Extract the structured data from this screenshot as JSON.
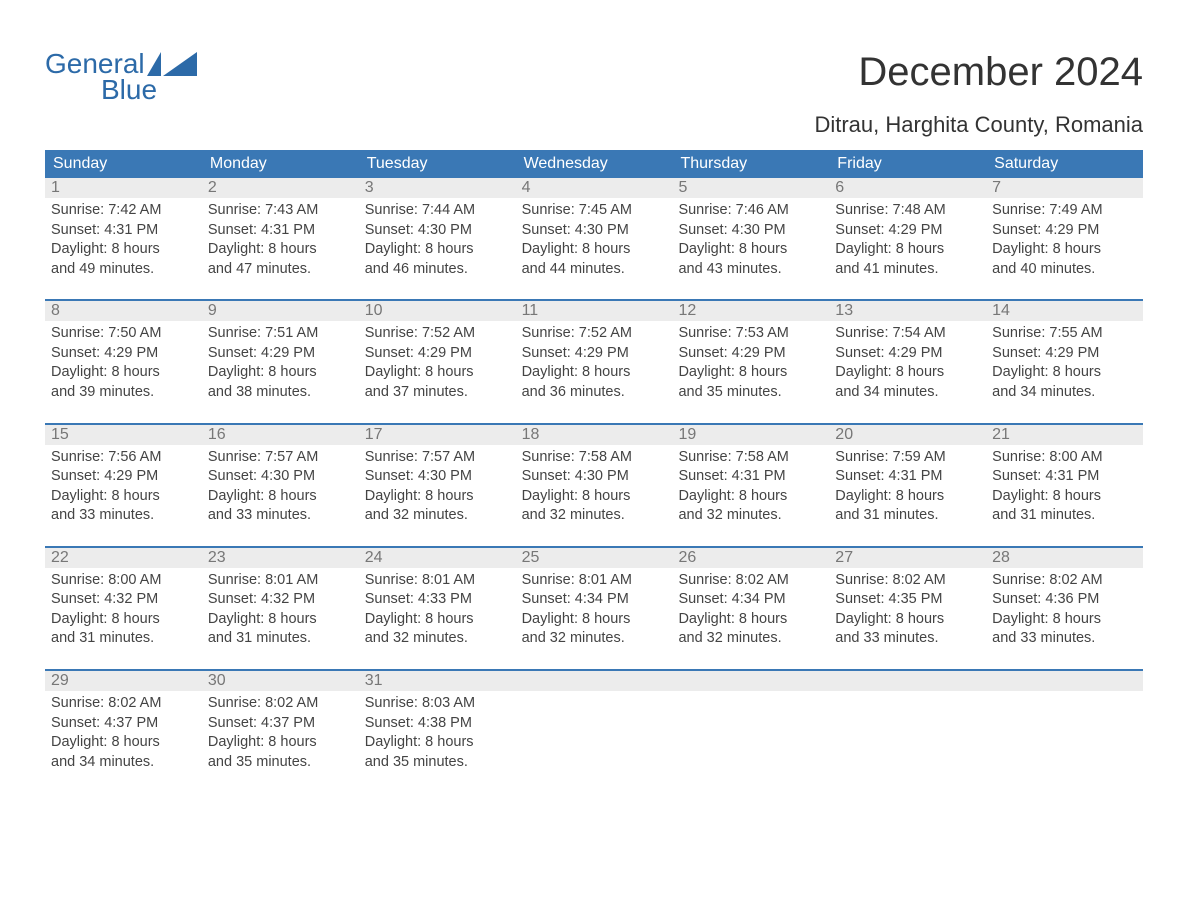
{
  "brand": {
    "line1": "General",
    "line2": "Blue",
    "accent_color": "#2c6aa8"
  },
  "title": "December 2024",
  "subtitle": "Ditrau, Harghita County, Romania",
  "colors": {
    "header_bg": "#3a78b5",
    "header_text": "#ffffff",
    "daynum_bg": "#ececec",
    "daynum_text": "#777777",
    "body_text": "#444444",
    "rule": "#3a78b5",
    "page_bg": "#ffffff"
  },
  "typography": {
    "title_fontsize": 40,
    "subtitle_fontsize": 22,
    "dayhead_fontsize": 16,
    "daynum_fontsize": 16,
    "body_fontsize": 14.5
  },
  "calendar": {
    "type": "table",
    "columns": [
      "Sunday",
      "Monday",
      "Tuesday",
      "Wednesday",
      "Thursday",
      "Friday",
      "Saturday"
    ],
    "weeks": [
      [
        {
          "day": "1",
          "sunrise": "Sunrise: 7:42 AM",
          "sunset": "Sunset: 4:31 PM",
          "d1": "Daylight: 8 hours",
          "d2": "and 49 minutes."
        },
        {
          "day": "2",
          "sunrise": "Sunrise: 7:43 AM",
          "sunset": "Sunset: 4:31 PM",
          "d1": "Daylight: 8 hours",
          "d2": "and 47 minutes."
        },
        {
          "day": "3",
          "sunrise": "Sunrise: 7:44 AM",
          "sunset": "Sunset: 4:30 PM",
          "d1": "Daylight: 8 hours",
          "d2": "and 46 minutes."
        },
        {
          "day": "4",
          "sunrise": "Sunrise: 7:45 AM",
          "sunset": "Sunset: 4:30 PM",
          "d1": "Daylight: 8 hours",
          "d2": "and 44 minutes."
        },
        {
          "day": "5",
          "sunrise": "Sunrise: 7:46 AM",
          "sunset": "Sunset: 4:30 PM",
          "d1": "Daylight: 8 hours",
          "d2": "and 43 minutes."
        },
        {
          "day": "6",
          "sunrise": "Sunrise: 7:48 AM",
          "sunset": "Sunset: 4:29 PM",
          "d1": "Daylight: 8 hours",
          "d2": "and 41 minutes."
        },
        {
          "day": "7",
          "sunrise": "Sunrise: 7:49 AM",
          "sunset": "Sunset: 4:29 PM",
          "d1": "Daylight: 8 hours",
          "d2": "and 40 minutes."
        }
      ],
      [
        {
          "day": "8",
          "sunrise": "Sunrise: 7:50 AM",
          "sunset": "Sunset: 4:29 PM",
          "d1": "Daylight: 8 hours",
          "d2": "and 39 minutes."
        },
        {
          "day": "9",
          "sunrise": "Sunrise: 7:51 AM",
          "sunset": "Sunset: 4:29 PM",
          "d1": "Daylight: 8 hours",
          "d2": "and 38 minutes."
        },
        {
          "day": "10",
          "sunrise": "Sunrise: 7:52 AM",
          "sunset": "Sunset: 4:29 PM",
          "d1": "Daylight: 8 hours",
          "d2": "and 37 minutes."
        },
        {
          "day": "11",
          "sunrise": "Sunrise: 7:52 AM",
          "sunset": "Sunset: 4:29 PM",
          "d1": "Daylight: 8 hours",
          "d2": "and 36 minutes."
        },
        {
          "day": "12",
          "sunrise": "Sunrise: 7:53 AM",
          "sunset": "Sunset: 4:29 PM",
          "d1": "Daylight: 8 hours",
          "d2": "and 35 minutes."
        },
        {
          "day": "13",
          "sunrise": "Sunrise: 7:54 AM",
          "sunset": "Sunset: 4:29 PM",
          "d1": "Daylight: 8 hours",
          "d2": "and 34 minutes."
        },
        {
          "day": "14",
          "sunrise": "Sunrise: 7:55 AM",
          "sunset": "Sunset: 4:29 PM",
          "d1": "Daylight: 8 hours",
          "d2": "and 34 minutes."
        }
      ],
      [
        {
          "day": "15",
          "sunrise": "Sunrise: 7:56 AM",
          "sunset": "Sunset: 4:29 PM",
          "d1": "Daylight: 8 hours",
          "d2": "and 33 minutes."
        },
        {
          "day": "16",
          "sunrise": "Sunrise: 7:57 AM",
          "sunset": "Sunset: 4:30 PM",
          "d1": "Daylight: 8 hours",
          "d2": "and 33 minutes."
        },
        {
          "day": "17",
          "sunrise": "Sunrise: 7:57 AM",
          "sunset": "Sunset: 4:30 PM",
          "d1": "Daylight: 8 hours",
          "d2": "and 32 minutes."
        },
        {
          "day": "18",
          "sunrise": "Sunrise: 7:58 AM",
          "sunset": "Sunset: 4:30 PM",
          "d1": "Daylight: 8 hours",
          "d2": "and 32 minutes."
        },
        {
          "day": "19",
          "sunrise": "Sunrise: 7:58 AM",
          "sunset": "Sunset: 4:31 PM",
          "d1": "Daylight: 8 hours",
          "d2": "and 32 minutes."
        },
        {
          "day": "20",
          "sunrise": "Sunrise: 7:59 AM",
          "sunset": "Sunset: 4:31 PM",
          "d1": "Daylight: 8 hours",
          "d2": "and 31 minutes."
        },
        {
          "day": "21",
          "sunrise": "Sunrise: 8:00 AM",
          "sunset": "Sunset: 4:31 PM",
          "d1": "Daylight: 8 hours",
          "d2": "and 31 minutes."
        }
      ],
      [
        {
          "day": "22",
          "sunrise": "Sunrise: 8:00 AM",
          "sunset": "Sunset: 4:32 PM",
          "d1": "Daylight: 8 hours",
          "d2": "and 31 minutes."
        },
        {
          "day": "23",
          "sunrise": "Sunrise: 8:01 AM",
          "sunset": "Sunset: 4:32 PM",
          "d1": "Daylight: 8 hours",
          "d2": "and 31 minutes."
        },
        {
          "day": "24",
          "sunrise": "Sunrise: 8:01 AM",
          "sunset": "Sunset: 4:33 PM",
          "d1": "Daylight: 8 hours",
          "d2": "and 32 minutes."
        },
        {
          "day": "25",
          "sunrise": "Sunrise: 8:01 AM",
          "sunset": "Sunset: 4:34 PM",
          "d1": "Daylight: 8 hours",
          "d2": "and 32 minutes."
        },
        {
          "day": "26",
          "sunrise": "Sunrise: 8:02 AM",
          "sunset": "Sunset: 4:34 PM",
          "d1": "Daylight: 8 hours",
          "d2": "and 32 minutes."
        },
        {
          "day": "27",
          "sunrise": "Sunrise: 8:02 AM",
          "sunset": "Sunset: 4:35 PM",
          "d1": "Daylight: 8 hours",
          "d2": "and 33 minutes."
        },
        {
          "day": "28",
          "sunrise": "Sunrise: 8:02 AM",
          "sunset": "Sunset: 4:36 PM",
          "d1": "Daylight: 8 hours",
          "d2": "and 33 minutes."
        }
      ],
      [
        {
          "day": "29",
          "sunrise": "Sunrise: 8:02 AM",
          "sunset": "Sunset: 4:37 PM",
          "d1": "Daylight: 8 hours",
          "d2": "and 34 minutes."
        },
        {
          "day": "30",
          "sunrise": "Sunrise: 8:02 AM",
          "sunset": "Sunset: 4:37 PM",
          "d1": "Daylight: 8 hours",
          "d2": "and 35 minutes."
        },
        {
          "day": "31",
          "sunrise": "Sunrise: 8:03 AM",
          "sunset": "Sunset: 4:38 PM",
          "d1": "Daylight: 8 hours",
          "d2": "and 35 minutes."
        },
        {
          "empty": true
        },
        {
          "empty": true
        },
        {
          "empty": true
        },
        {
          "empty": true
        }
      ]
    ]
  }
}
